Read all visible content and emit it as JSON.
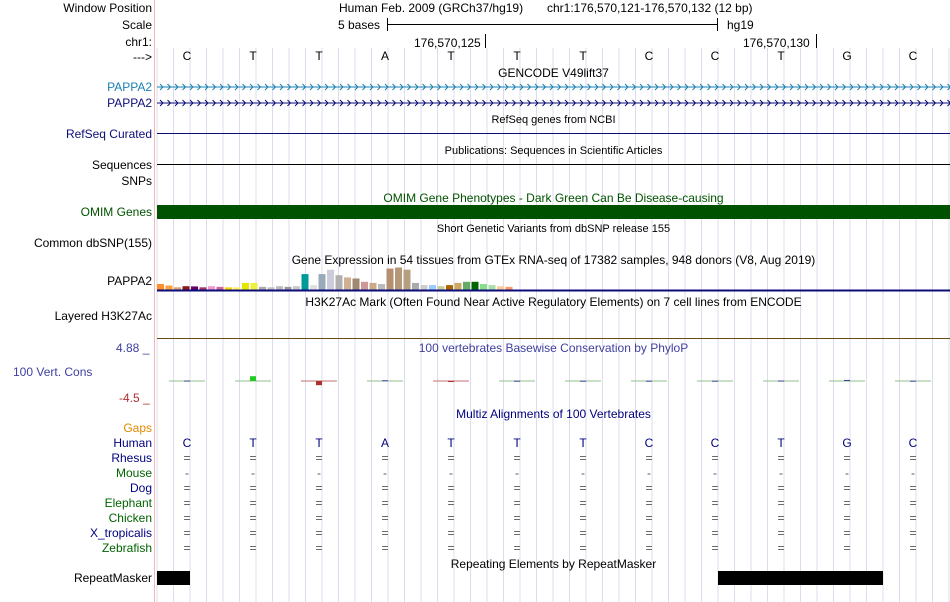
{
  "header": {
    "window_position_label": "Window Position",
    "assembly_text": "Human Feb. 2009 (GRCh37/hg19)",
    "position_text": "chr1:176,570,121-176,570,132 (12 bp)",
    "scale_label": "Scale",
    "scale_bar_text": "5 bases",
    "scale_db_text": "hg19",
    "chrom_label": "chr1:",
    "coord_1": "176,570,125",
    "coord_2": "176,570,130",
    "strand_label": "--->"
  },
  "bases": [
    "C",
    "T",
    "T",
    "A",
    "T",
    "T",
    "T",
    "C",
    "C",
    "T",
    "G",
    "C"
  ],
  "tracks": {
    "gencode_title": "GENCODE V49lift37",
    "gencode_label_1": "PAPPA2",
    "gencode_label_2": "PAPPA2",
    "refseq_title": "RefSeq genes from NCBI",
    "refseq_label": "RefSeq Curated",
    "publications_title": "Publications: Sequences in Scientific Articles",
    "sequences_label": "Sequences",
    "snps_label": "SNPs",
    "omim_title": "OMIM Gene Phenotypes - Dark Green Can Be Disease-causing",
    "omim_label": "OMIM Genes",
    "dbsnp_title": "Short Genetic Variants from dbSNP release 155",
    "dbsnp_label": "Common dbSNP(155)",
    "gtex_title": "Gene Expression in 54 tissues from GTEx RNA-seq of 17382 samples, 948 donors (V8, Aug 2019)",
    "gtex_label": "PAPPA2",
    "h3k27ac_title": "H3K27Ac Mark (Often Found Near Active Regulatory Elements) on 7 cell lines from ENCODE",
    "h3k27ac_label": "Layered H3K27Ac",
    "phylop_max": "4.88 _",
    "phylop_min": "-4.5 _",
    "phylop_title": "100 vertebrates Basewise Conservation by PhyloP",
    "phylop_label": "100 Vert. Cons",
    "multiz_title": "Multiz Alignments of 100 Vertebrates",
    "gaps_label": "Gaps",
    "repeat_title": "Repeating Elements by RepeatMasker",
    "repeat_label": "RepeatMasker"
  },
  "alignment": [
    {
      "species": "Human",
      "color": "#000080",
      "row": [
        "C",
        "T",
        "T",
        "A",
        "T",
        "T",
        "T",
        "C",
        "C",
        "T",
        "G",
        "C"
      ]
    },
    {
      "species": "Rhesus",
      "color": "#000080",
      "row": [
        "=",
        "=",
        "=",
        "=",
        "=",
        "=",
        "=",
        "=",
        "=",
        "=",
        "=",
        "="
      ]
    },
    {
      "species": "Mouse",
      "color": "#006400",
      "row": [
        "-",
        "-",
        "-",
        "-",
        "-",
        "-",
        "-",
        "-",
        "-",
        "-",
        "-",
        "-"
      ]
    },
    {
      "species": "Dog",
      "color": "#000080",
      "row": [
        "=",
        "=",
        "=",
        "=",
        "=",
        "=",
        "=",
        "=",
        "=",
        "=",
        "=",
        "="
      ]
    },
    {
      "species": "Elephant",
      "color": "#006400",
      "row": [
        "=",
        "=",
        "=",
        "=",
        "=",
        "=",
        "=",
        "=",
        "=",
        "=",
        "=",
        "="
      ]
    },
    {
      "species": "Chicken",
      "color": "#006400",
      "row": [
        "=",
        "=",
        "=",
        "=",
        "=",
        "=",
        "=",
        "=",
        "=",
        "=",
        "=",
        "="
      ]
    },
    {
      "species": "X_tropicalis",
      "color": "#000080",
      "row": [
        "=",
        "=",
        "=",
        "=",
        "=",
        "=",
        "=",
        "=",
        "=",
        "=",
        "=",
        "="
      ]
    },
    {
      "species": "Zebrafish",
      "color": "#006400",
      "row": [
        "=",
        "=",
        "=",
        "=",
        "=",
        "=",
        "=",
        "=",
        "=",
        "=",
        "=",
        "="
      ]
    }
  ],
  "colors": {
    "gencode": "#1a7fb3",
    "refseq": "#0c0c78",
    "omim": "#005200",
    "gtex_line": "#0c0c78",
    "h3k27ac_line": "#6b4a1a",
    "phylop": "#3f3f9f",
    "phylop_neg": "#b03030",
    "gaps": "#e08a00",
    "side_bar": "#f2b8b8"
  },
  "gtex_bars": [
    {
      "color": "#ff8f2a",
      "value": 0.25
    },
    {
      "color": "#ff9f3a",
      "value": 0.18
    },
    {
      "color": "#d9a276",
      "value": 0.1
    },
    {
      "color": "#8b1a1a",
      "value": 0.15
    },
    {
      "color": "#660066",
      "value": 0.14
    },
    {
      "color": "#aa3366",
      "value": 0.1
    },
    {
      "color": "#ee99cc",
      "value": 0.15
    },
    {
      "color": "#cc6699",
      "value": 0.12
    },
    {
      "color": "#ffd700",
      "value": 0.1
    },
    {
      "color": "#ffee66",
      "value": 0.1
    },
    {
      "color": "#e6e600",
      "value": 0.3
    },
    {
      "color": "#eeee44",
      "value": 0.3
    },
    {
      "color": "#aaaaaa",
      "value": 0.12
    },
    {
      "color": "#c0c0c0",
      "value": 0.1
    },
    {
      "color": "#bbbbbb",
      "value": 0.15
    },
    {
      "color": "#999999",
      "value": 0.12
    },
    {
      "color": "#c8c8c8",
      "value": 0.15
    },
    {
      "color": "#009999",
      "value": 0.7
    },
    {
      "color": "#e0e0e0",
      "value": 0.2
    },
    {
      "color": "#99aabb",
      "value": 0.7
    },
    {
      "color": "#ccccdd",
      "value": 0.9
    },
    {
      "color": "#b0b0b0",
      "value": 0.65
    },
    {
      "color": "#d0b090",
      "value": 0.55
    },
    {
      "color": "#a08870",
      "value": 0.5
    },
    {
      "color": "#cc9999",
      "value": 0.35
    },
    {
      "color": "#ccaa88",
      "value": 0.3
    },
    {
      "color": "#bbbbbb",
      "value": 0.25
    },
    {
      "color": "#b49070",
      "value": 0.95
    },
    {
      "color": "#b49878",
      "value": 1.0
    },
    {
      "color": "#b4a080",
      "value": 0.9
    },
    {
      "color": "#aaaaaa",
      "value": 0.3
    },
    {
      "color": "#cccccc",
      "value": 0.2
    },
    {
      "color": "#99ccff",
      "value": 0.2
    },
    {
      "color": "#cccc99",
      "value": 0.15
    },
    {
      "color": "#aa6600",
      "value": 0.2
    },
    {
      "color": "#ccaa66",
      "value": 0.3
    },
    {
      "color": "#66aa66",
      "value": 0.35
    },
    {
      "color": "#006600",
      "value": 0.35
    },
    {
      "color": "#88dd88",
      "value": 0.25
    },
    {
      "color": "#aaddaa",
      "value": 0.2
    },
    {
      "color": "#ffcc99",
      "value": 0.15
    },
    {
      "color": "#ff9966",
      "value": 0.12
    }
  ],
  "phylop_scores": [
    0.15,
    1.6,
    -1.4,
    0.25,
    -0.3,
    0.1,
    0.1,
    0.1,
    0.1,
    0.15,
    0.35,
    0.1
  ],
  "repeat_blocks": [
    [
      1,
      1.5
    ],
    [
      9.5,
      12
    ]
  ]
}
